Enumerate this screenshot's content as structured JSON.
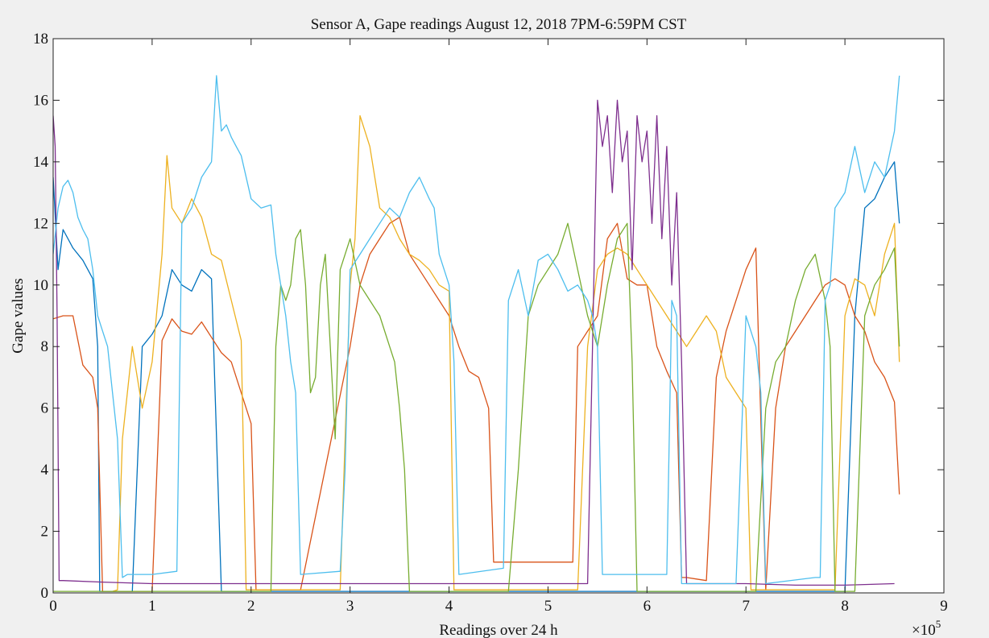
{
  "chart_data": {
    "type": "line",
    "title": "Sensor A, Gape readings August 12, 2018 7PM-6:59PM CST",
    "xlabel": "Readings over 24 h",
    "ylabel": "Gape values",
    "x_exponent_label": "×10",
    "x_exponent_power": "5",
    "xlim": [
      0,
      9
    ],
    "ylim": [
      0,
      18
    ],
    "xticks": [
      0,
      1,
      2,
      3,
      4,
      5,
      6,
      7,
      8,
      9
    ],
    "yticks": [
      0,
      2,
      4,
      6,
      8,
      10,
      12,
      14,
      16,
      18
    ],
    "grid": false,
    "background": "#f0f0f0",
    "plot_background": "#ffffff",
    "series": [
      {
        "color": "#0072BD",
        "x": [
          0,
          0.05,
          0.1,
          0.2,
          0.3,
          0.4,
          0.45,
          0.47,
          0.5,
          0.55,
          0.6,
          0.7,
          0.8,
          0.9,
          1.0,
          1.1,
          1.2,
          1.3,
          1.4,
          1.5,
          1.6,
          1.7,
          1.8,
          1.9,
          2.0,
          2.5,
          3.0,
          3.5,
          4.0,
          4.5,
          5.0,
          5.5,
          6.0,
          6.5,
          7.0,
          7.5,
          7.8,
          7.9,
          8.0,
          8.1,
          8.2,
          8.3,
          8.4,
          8.5,
          8.55
        ],
        "y": [
          13.5,
          10.5,
          11.8,
          11.2,
          10.8,
          10.2,
          8.0,
          0.05,
          0.05,
          0.05,
          0.05,
          0.05,
          0.05,
          8.0,
          8.4,
          9.0,
          10.5,
          10.0,
          9.8,
          10.5,
          10.2,
          0.05,
          0.05,
          0.05,
          0.05,
          0.05,
          0.05,
          0.05,
          0.05,
          0.05,
          0.05,
          0.05,
          0.05,
          0.05,
          0.05,
          0.05,
          0.05,
          0.05,
          0.05,
          9.0,
          12.5,
          12.8,
          13.5,
          14.0,
          12.0
        ]
      },
      {
        "color": "#D95319",
        "x": [
          0,
          0.1,
          0.2,
          0.3,
          0.4,
          0.45,
          0.5,
          1.0,
          1.1,
          1.2,
          1.3,
          1.4,
          1.5,
          1.6,
          1.7,
          1.8,
          1.9,
          2.0,
          2.05,
          2.1,
          2.5,
          3.0,
          3.1,
          3.2,
          3.3,
          3.4,
          3.5,
          3.6,
          3.7,
          3.8,
          3.9,
          4.0,
          4.1,
          4.2,
          4.3,
          4.4,
          4.45,
          4.5,
          5.0,
          5.25,
          5.3,
          5.5,
          5.6,
          5.7,
          5.8,
          5.9,
          6.0,
          6.1,
          6.2,
          6.3,
          6.35,
          6.4,
          6.5,
          6.6,
          6.7,
          6.8,
          6.9,
          7.0,
          7.1,
          7.2,
          7.3,
          7.4,
          7.5,
          7.6,
          7.7,
          7.8,
          7.9,
          8.0,
          8.1,
          8.2,
          8.3,
          8.4,
          8.5,
          8.55
        ],
        "y": [
          8.9,
          9.0,
          9.0,
          7.4,
          7.0,
          6.0,
          0.05,
          0.05,
          8.2,
          8.9,
          8.5,
          8.4,
          8.8,
          8.3,
          7.8,
          7.5,
          6.5,
          5.5,
          0.1,
          0.1,
          0.1,
          8.0,
          10.0,
          11.0,
          11.5,
          12.0,
          12.2,
          11.0,
          10.5,
          10.0,
          9.5,
          9.0,
          8.0,
          7.2,
          7.0,
          6.0,
          1.0,
          1.0,
          1.0,
          1.0,
          8.0,
          9.0,
          11.5,
          12.0,
          10.2,
          10.0,
          10.0,
          8.0,
          7.2,
          6.5,
          0.5,
          0.5,
          0.45,
          0.4,
          7.0,
          8.5,
          9.5,
          10.5,
          11.2,
          0.1,
          6.0,
          8.0,
          8.5,
          9.0,
          9.5,
          10.0,
          10.2,
          10.0,
          9.0,
          8.5,
          7.5,
          7.0,
          6.2,
          3.2
        ]
      },
      {
        "color": "#EDB120",
        "x": [
          0.6,
          0.65,
          0.7,
          0.8,
          0.9,
          1.0,
          1.1,
          1.15,
          1.2,
          1.3,
          1.4,
          1.5,
          1.6,
          1.7,
          1.8,
          1.9,
          1.95,
          2.0,
          2.5,
          2.9,
          3.0,
          3.05,
          3.1,
          3.15,
          3.2,
          3.3,
          3.4,
          3.5,
          3.6,
          3.7,
          3.8,
          3.9,
          4.0,
          4.05,
          4.1,
          4.5,
          5.0,
          5.3,
          5.4,
          5.5,
          5.6,
          5.7,
          5.8,
          5.9,
          6.0,
          6.1,
          6.2,
          6.3,
          6.4,
          6.5,
          6.6,
          6.7,
          6.8,
          6.9,
          7.0,
          7.05,
          7.1,
          7.5,
          7.9,
          8.0,
          8.1,
          8.2,
          8.3,
          8.4,
          8.5,
          8.55
        ],
        "y": [
          0.05,
          0.1,
          5.0,
          8.0,
          6.0,
          7.5,
          11.0,
          14.2,
          12.5,
          12.0,
          12.8,
          12.2,
          11.0,
          10.8,
          9.5,
          8.2,
          0.1,
          0.1,
          0.1,
          0.1,
          10.0,
          11.5,
          15.5,
          15.0,
          14.5,
          12.5,
          12.2,
          11.5,
          11.0,
          10.8,
          10.5,
          10.0,
          9.8,
          0.1,
          0.1,
          0.1,
          0.1,
          0.1,
          8.0,
          10.5,
          11.0,
          11.2,
          11.0,
          10.5,
          10.0,
          9.5,
          9.0,
          8.5,
          8.0,
          8.5,
          9.0,
          8.5,
          7.0,
          6.5,
          6.0,
          0.1,
          0.1,
          0.1,
          0.1,
          9.0,
          10.2,
          10.0,
          9.0,
          11.0,
          12.0,
          7.5
        ]
      },
      {
        "color": "#7E2F8E",
        "x": [
          0,
          0.02,
          0.04,
          0.06,
          0.1,
          0.5,
          1.0,
          1.5,
          2.0,
          2.5,
          3.0,
          3.5,
          4.0,
          4.5,
          5.0,
          5.4,
          5.45,
          5.5,
          5.55,
          5.6,
          5.65,
          5.7,
          5.75,
          5.8,
          5.85,
          5.9,
          5.95,
          6.0,
          6.05,
          6.1,
          6.15,
          6.2,
          6.25,
          6.3,
          6.35,
          6.4,
          6.5,
          7.0,
          7.5,
          8.0,
          8.5
        ],
        "y": [
          15.5,
          14.5,
          9.0,
          0.4,
          0.4,
          0.35,
          0.3,
          0.3,
          0.3,
          0.3,
          0.3,
          0.3,
          0.3,
          0.3,
          0.3,
          0.3,
          8.0,
          16.0,
          14.5,
          15.5,
          13.0,
          16.0,
          14.0,
          15.0,
          10.5,
          15.5,
          14.0,
          15.0,
          12.0,
          15.5,
          11.5,
          14.5,
          10.0,
          13.0,
          7.5,
          0.3,
          0.3,
          0.3,
          0.25,
          0.25,
          0.3
        ]
      },
      {
        "color": "#77AC30",
        "x": [
          0,
          2.2,
          2.25,
          2.3,
          2.35,
          2.4,
          2.45,
          2.5,
          2.55,
          2.6,
          2.65,
          2.7,
          2.75,
          2.8,
          2.85,
          2.9,
          3.0,
          3.1,
          3.2,
          3.3,
          3.4,
          3.45,
          3.5,
          3.55,
          3.6,
          4.6,
          4.7,
          4.8,
          4.9,
          5.0,
          5.1,
          5.2,
          5.3,
          5.4,
          5.5,
          5.6,
          5.7,
          5.8,
          5.85,
          5.9,
          6.5,
          7.1,
          7.2,
          7.3,
          7.4,
          7.5,
          7.6,
          7.7,
          7.8,
          7.85,
          7.9,
          8.0,
          8.1,
          8.2,
          8.3,
          8.4,
          8.5,
          8.55
        ],
        "y": [
          0.05,
          0.05,
          8.0,
          10.0,
          9.5,
          10.0,
          11.5,
          11.8,
          10.0,
          6.5,
          7.0,
          10.0,
          11.0,
          8.0,
          5.0,
          10.5,
          11.5,
          10.0,
          9.5,
          9.0,
          8.0,
          7.5,
          6.0,
          4.0,
          0.05,
          0.05,
          4.0,
          9.0,
          10.0,
          10.5,
          11.0,
          12.0,
          10.5,
          9.0,
          8.0,
          10.0,
          11.5,
          12.0,
          7.5,
          0.05,
          0.05,
          0.05,
          6.0,
          7.5,
          8.0,
          9.5,
          10.5,
          11.0,
          9.5,
          8.0,
          0.05,
          0.05,
          0.05,
          9.0,
          10.0,
          10.5,
          11.2,
          8.0
        ]
      },
      {
        "color": "#4DBEEE",
        "x": [
          0,
          0.05,
          0.1,
          0.15,
          0.2,
          0.25,
          0.3,
          0.35,
          0.4,
          0.45,
          0.5,
          0.55,
          0.6,
          0.65,
          0.7,
          0.75,
          1.0,
          1.25,
          1.3,
          1.4,
          1.5,
          1.6,
          1.65,
          1.7,
          1.75,
          1.8,
          1.85,
          1.9,
          2.0,
          2.1,
          2.2,
          2.25,
          2.3,
          2.35,
          2.4,
          2.45,
          2.5,
          2.9,
          2.95,
          3.0,
          3.1,
          3.2,
          3.3,
          3.4,
          3.5,
          3.6,
          3.7,
          3.8,
          3.85,
          3.9,
          4.0,
          4.05,
          4.1,
          4.55,
          4.6,
          4.7,
          4.8,
          4.9,
          5.0,
          5.1,
          5.2,
          5.3,
          5.4,
          5.45,
          5.5,
          5.55,
          5.6,
          6.2,
          6.25,
          6.3,
          6.35,
          6.5,
          6.9,
          7.0,
          7.1,
          7.15,
          7.2,
          7.7,
          7.75,
          7.8,
          7.85,
          7.9,
          8.0,
          8.1,
          8.2,
          8.3,
          8.4,
          8.5,
          8.55
        ],
        "y": [
          11.0,
          12.5,
          13.2,
          13.4,
          13.0,
          12.2,
          11.8,
          11.5,
          10.5,
          9.0,
          8.5,
          8.0,
          6.5,
          5.0,
          0.5,
          0.6,
          0.6,
          0.7,
          12.0,
          12.5,
          13.5,
          14.0,
          16.8,
          15.0,
          15.2,
          14.8,
          14.5,
          14.2,
          12.8,
          12.5,
          12.6,
          11.0,
          10.0,
          9.0,
          7.5,
          6.5,
          0.6,
          0.7,
          4.0,
          10.5,
          11.0,
          11.5,
          12.0,
          12.5,
          12.2,
          13.0,
          13.5,
          12.8,
          12.5,
          11.0,
          10.0,
          7.5,
          0.6,
          0.8,
          9.5,
          10.5,
          9.0,
          10.8,
          11.0,
          10.5,
          9.8,
          10.0,
          9.5,
          9.0,
          8.0,
          0.6,
          0.6,
          0.6,
          9.5,
          9.0,
          0.3,
          0.3,
          0.3,
          9.0,
          8.0,
          6.5,
          0.3,
          0.5,
          0.5,
          9.5,
          10.0,
          12.5,
          13.0,
          14.5,
          13.0,
          14.0,
          13.5,
          15.0,
          16.8
        ]
      }
    ]
  }
}
